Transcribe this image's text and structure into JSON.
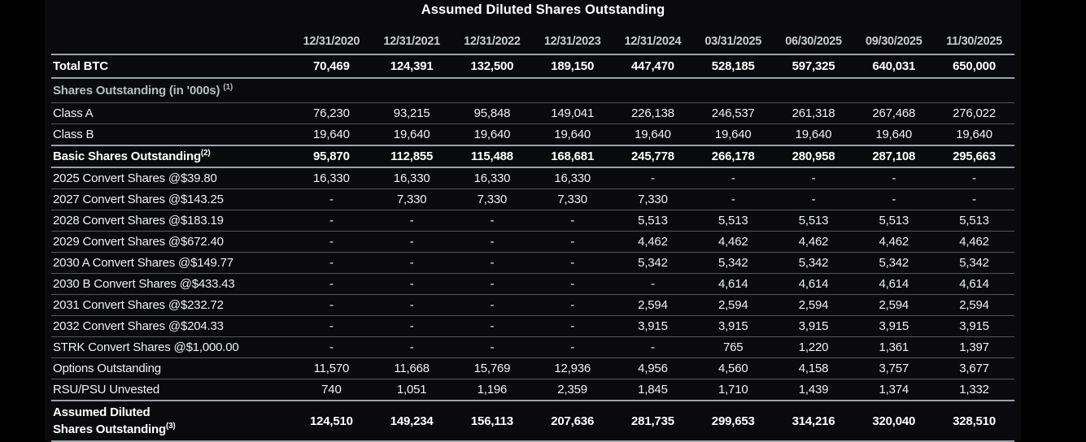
{
  "title": "Assumed Diluted Shares Outstanding",
  "colors": {
    "background": "#000000",
    "panel_background": "#0a0a0c",
    "text_primary": "#ffffff",
    "text_body": "#eef0f3",
    "text_header": "#c7ccd3",
    "text_section": "#b7bdc5",
    "border_strong": "#9aa1ab",
    "border_thin": "#51575f"
  },
  "chart_data": {
    "type": "table",
    "title": "Assumed Diluted Shares Outstanding",
    "grid": "horizontal-rules-only",
    "columns": [
      "12/31/2020",
      "12/31/2021",
      "12/31/2022",
      "12/31/2023",
      "12/31/2024",
      "03/31/2025",
      "06/30/2025",
      "09/30/2025",
      "11/30/2025"
    ],
    "rows": [
      {
        "label": "Total BTC",
        "style": "total",
        "values": [
          "70,469",
          "124,391",
          "132,500",
          "189,150",
          "447,470",
          "528,185",
          "597,325",
          "640,031",
          "650,000"
        ]
      },
      {
        "label": "Shares Outstanding (in '000s)",
        "sup": "(1)",
        "sup_gap": true,
        "style": "section",
        "values": [
          "",
          "",
          "",
          "",
          "",
          "",
          "",
          "",
          ""
        ]
      },
      {
        "label": "Class A",
        "style": "normal",
        "values": [
          "76,230",
          "93,215",
          "95,848",
          "149,041",
          "226,138",
          "246,537",
          "261,318",
          "267,468",
          "276,022"
        ]
      },
      {
        "label": "Class B",
        "style": "normal",
        "values": [
          "19,640",
          "19,640",
          "19,640",
          "19,640",
          "19,640",
          "19,640",
          "19,640",
          "19,640",
          "19,640"
        ]
      },
      {
        "label": "Basic Shares Outstanding",
        "sup": "(2)",
        "style": "grand",
        "values": [
          "95,870",
          "112,855",
          "115,488",
          "168,681",
          "245,778",
          "266,178",
          "280,958",
          "287,108",
          "295,663"
        ]
      },
      {
        "label": "2025 Convert Shares @$39.80",
        "style": "normal",
        "values": [
          "16,330",
          "16,330",
          "16,330",
          "16,330",
          "-",
          "-",
          "-",
          "-",
          "-"
        ]
      },
      {
        "label": "2027 Convert Shares @$143.25",
        "style": "normal",
        "values": [
          "-",
          "7,330",
          "7,330",
          "7,330",
          "7,330",
          "-",
          "-",
          "-",
          "-"
        ]
      },
      {
        "label": "2028 Convert Shares @$183.19",
        "style": "normal",
        "values": [
          "-",
          "-",
          "-",
          "-",
          "5,513",
          "5,513",
          "5,513",
          "5,513",
          "5,513"
        ]
      },
      {
        "label": "2029 Convert Shares @$672.40",
        "style": "normal",
        "values": [
          "-",
          "-",
          "-",
          "-",
          "4,462",
          "4,462",
          "4,462",
          "4,462",
          "4,462"
        ]
      },
      {
        "label": "2030 A Convert Shares @$149.77",
        "style": "normal",
        "values": [
          "-",
          "-",
          "-",
          "-",
          "5,342",
          "5,342",
          "5,342",
          "5,342",
          "5,342"
        ]
      },
      {
        "label": "2030 B Convert Shares @$433.43",
        "style": "normal",
        "values": [
          "-",
          "-",
          "-",
          "-",
          "-",
          "4,614",
          "4,614",
          "4,614",
          "4,614"
        ]
      },
      {
        "label": "2031 Convert Shares @$232.72",
        "style": "normal",
        "values": [
          "-",
          "-",
          "-",
          "-",
          "2,594",
          "2,594",
          "2,594",
          "2,594",
          "2,594"
        ]
      },
      {
        "label": "2032 Convert Shares @$204.33",
        "style": "normal",
        "values": [
          "-",
          "-",
          "-",
          "-",
          "3,915",
          "3,915",
          "3,915",
          "3,915",
          "3,915"
        ]
      },
      {
        "label": "STRK Convert Shares @$1,000.00",
        "style": "normal",
        "values": [
          "-",
          "-",
          "-",
          "-",
          "-",
          "765",
          "1,220",
          "1,361",
          "1,397"
        ]
      },
      {
        "label": "Options Outstanding",
        "style": "normal",
        "values": [
          "11,570",
          "11,668",
          "15,769",
          "12,936",
          "4,956",
          "4,560",
          "4,158",
          "3,757",
          "3,677"
        ]
      },
      {
        "label": "RSU/PSU Unvested",
        "style": "normal",
        "values": [
          "740",
          "1,051",
          "1,196",
          "2,359",
          "1,845",
          "1,710",
          "1,439",
          "1,374",
          "1,332"
        ]
      },
      {
        "label": "Assumed Diluted Shares Outstanding",
        "label_lines": [
          "Assumed Diluted",
          "Shares Outstanding"
        ],
        "sup": "(3)",
        "style": "grand tall",
        "values": [
          "124,510",
          "149,234",
          "156,113",
          "207,636",
          "281,735",
          "299,653",
          "314,216",
          "320,040",
          "328,510"
        ]
      }
    ]
  }
}
